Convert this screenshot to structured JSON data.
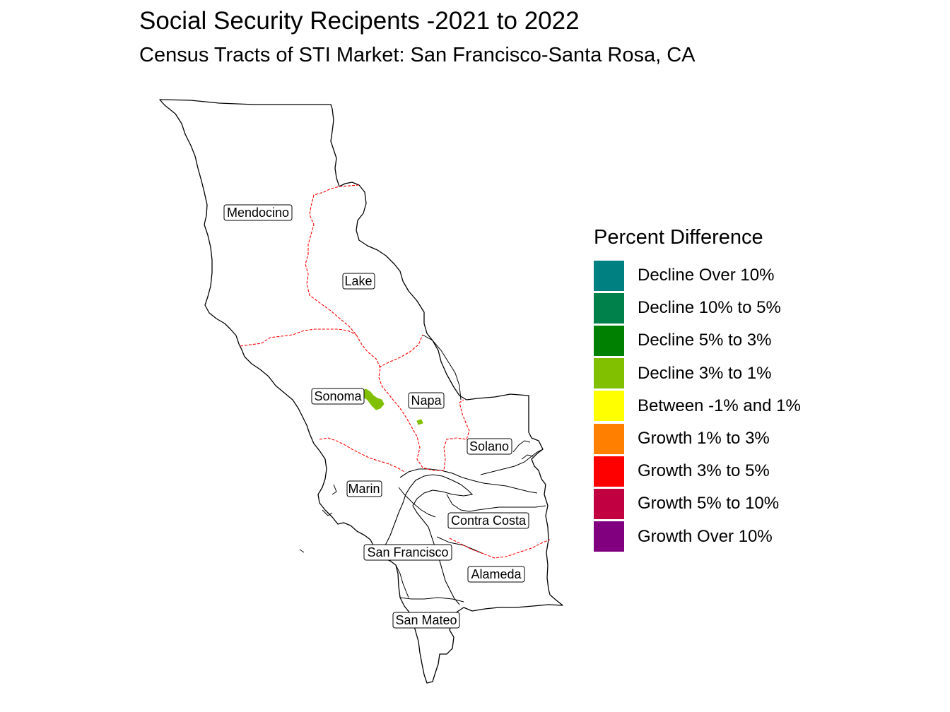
{
  "title": "Social Security Recipents -2021 to 2022",
  "subtitle": "Census Tracts of STI Market: San Francisco-Santa Rosa, CA",
  "legend": {
    "title": "Percent Difference",
    "items": [
      {
        "label": "Decline Over 10%",
        "color": "#008080"
      },
      {
        "label": "Decline 10% to 5%",
        "color": "#00804a"
      },
      {
        "label": "Decline 5% to 3%",
        "color": "#008000"
      },
      {
        "label": "Decline 3% to 1%",
        "color": "#80c000"
      },
      {
        "label": "Between -1% and 1%",
        "color": "#ffff00"
      },
      {
        "label": "Growth 1% to 3%",
        "color": "#ff8000"
      },
      {
        "label": "Growth 3% to 5%",
        "color": "#ff0000"
      },
      {
        "label": "Growth 5% to 10%",
        "color": "#c00040"
      },
      {
        "label": "Growth Over 10%",
        "color": "#800080"
      }
    ]
  },
  "counties": {
    "mendocino": "Mendocino",
    "lake": "Lake",
    "sonoma": "Sonoma",
    "napa": "Napa",
    "solano": "Solano",
    "marin": "Marin",
    "contra_costa": "Contra Costa",
    "san_francisco": "San Francisco",
    "alameda": "Alameda",
    "san_mateo": "San Mateo"
  },
  "colors": {
    "outline": "#000000",
    "market_boundary": "#ff0000",
    "tract_highlight": "#80c000"
  }
}
